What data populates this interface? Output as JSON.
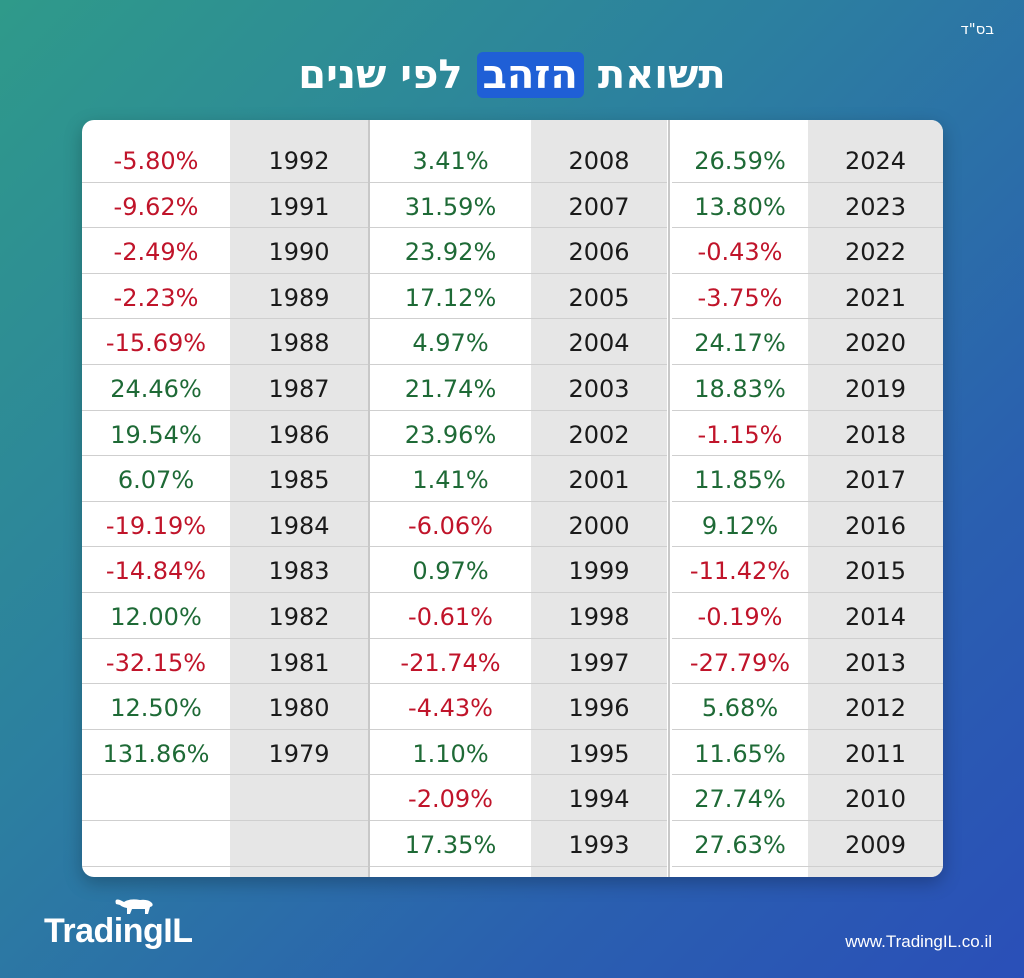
{
  "header": {
    "bsd": "בס\"ד",
    "title_part1": "תשואת",
    "title_highlight": "הזהב",
    "title_part2": "לפי שנים"
  },
  "table": {
    "groups": [
      {
        "rows": [
          {
            "year": "2024",
            "ret": "26.59%",
            "sign": "pos"
          },
          {
            "year": "2023",
            "ret": "13.80%",
            "sign": "pos"
          },
          {
            "year": "2022",
            "ret": "-0.43%",
            "sign": "neg"
          },
          {
            "year": "2021",
            "ret": "-3.75%",
            "sign": "neg"
          },
          {
            "year": "2020",
            "ret": "24.17%",
            "sign": "pos"
          },
          {
            "year": "2019",
            "ret": "18.83%",
            "sign": "pos"
          },
          {
            "year": "2018",
            "ret": "-1.15%",
            "sign": "neg"
          },
          {
            "year": "2017",
            "ret": "11.85%",
            "sign": "pos"
          },
          {
            "year": "2016",
            "ret": "9.12%",
            "sign": "pos"
          },
          {
            "year": "2015",
            "ret": "-11.42%",
            "sign": "neg"
          },
          {
            "year": "2014",
            "ret": "-0.19%",
            "sign": "neg"
          },
          {
            "year": "2013",
            "ret": "-27.79%",
            "sign": "neg"
          },
          {
            "year": "2012",
            "ret": "5.68%",
            "sign": "pos"
          },
          {
            "year": "2011",
            "ret": "11.65%",
            "sign": "pos"
          },
          {
            "year": "2010",
            "ret": "27.74%",
            "sign": "pos"
          },
          {
            "year": "2009",
            "ret": "27.63%",
            "sign": "pos"
          }
        ]
      },
      {
        "rows": [
          {
            "year": "2008",
            "ret": "3.41%",
            "sign": "pos"
          },
          {
            "year": "2007",
            "ret": "31.59%",
            "sign": "pos"
          },
          {
            "year": "2006",
            "ret": "23.92%",
            "sign": "pos"
          },
          {
            "year": "2005",
            "ret": "17.12%",
            "sign": "pos"
          },
          {
            "year": "2004",
            "ret": "4.97%",
            "sign": "pos"
          },
          {
            "year": "2003",
            "ret": "21.74%",
            "sign": "pos"
          },
          {
            "year": "2002",
            "ret": "23.96%",
            "sign": "pos"
          },
          {
            "year": "2001",
            "ret": "1.41%",
            "sign": "pos"
          },
          {
            "year": "2000",
            "ret": "-6.06%",
            "sign": "neg"
          },
          {
            "year": "1999",
            "ret": "0.97%",
            "sign": "pos"
          },
          {
            "year": "1998",
            "ret": "-0.61%",
            "sign": "neg"
          },
          {
            "year": "1997",
            "ret": "-21.74%",
            "sign": "neg"
          },
          {
            "year": "1996",
            "ret": "-4.43%",
            "sign": "neg"
          },
          {
            "year": "1995",
            "ret": "1.10%",
            "sign": "pos"
          },
          {
            "year": "1994",
            "ret": "-2.09%",
            "sign": "neg"
          },
          {
            "year": "1993",
            "ret": "17.35%",
            "sign": "pos"
          }
        ]
      },
      {
        "rows": [
          {
            "year": "1992",
            "ret": "-5.80%",
            "sign": "neg"
          },
          {
            "year": "1991",
            "ret": "-9.62%",
            "sign": "neg"
          },
          {
            "year": "1990",
            "ret": "-2.49%",
            "sign": "neg"
          },
          {
            "year": "1989",
            "ret": "-2.23%",
            "sign": "neg"
          },
          {
            "year": "1988",
            "ret": "-15.69%",
            "sign": "neg"
          },
          {
            "year": "1987",
            "ret": "24.46%",
            "sign": "pos"
          },
          {
            "year": "1986",
            "ret": "19.54%",
            "sign": "pos"
          },
          {
            "year": "1985",
            "ret": "6.07%",
            "sign": "pos"
          },
          {
            "year": "1984",
            "ret": "-19.19%",
            "sign": "neg"
          },
          {
            "year": "1983",
            "ret": "-14.84%",
            "sign": "neg"
          },
          {
            "year": "1982",
            "ret": "12.00%",
            "sign": "pos"
          },
          {
            "year": "1981",
            "ret": "-32.15%",
            "sign": "neg"
          },
          {
            "year": "1980",
            "ret": "12.50%",
            "sign": "pos"
          },
          {
            "year": "1979",
            "ret": "131.86%",
            "sign": "pos"
          },
          {
            "year": "",
            "ret": "",
            "sign": "pos"
          },
          {
            "year": "",
            "ret": "",
            "sign": "pos"
          }
        ]
      }
    ]
  },
  "footer": {
    "logo_text": "TradingIL",
    "url": "www.TradingIL.co.il"
  },
  "colors": {
    "positive": "#1e6a36",
    "negative": "#c0142a",
    "highlight": "#1f5fd6"
  }
}
